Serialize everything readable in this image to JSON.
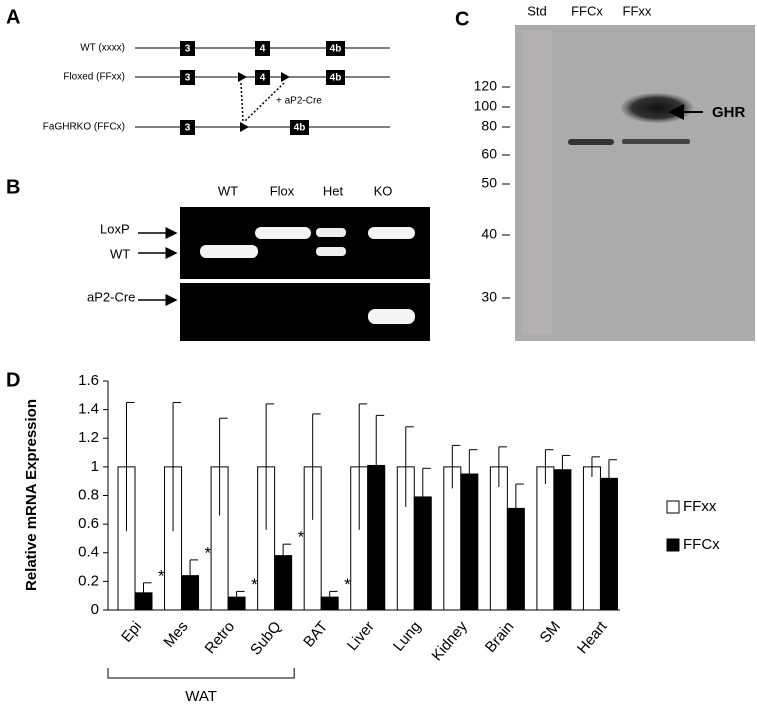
{
  "panel_a": {
    "label": "A",
    "rows": [
      {
        "label": "WT (xxxx)",
        "exons": [
          "3",
          "4",
          "4b"
        ]
      },
      {
        "label": "Floxed (FFxx)",
        "exons": [
          "3",
          "4",
          "4b"
        ]
      },
      {
        "label": "FaGHRKO (FFCx)",
        "exons": [
          "3",
          "4b"
        ]
      }
    ],
    "cre": "+ aP2-Cre"
  },
  "panel_b": {
    "label": "B",
    "lanes": [
      "WT",
      "Flox",
      "Het",
      "KO"
    ],
    "bands": [
      "LoxP",
      "WT",
      "aP2-Cre"
    ]
  },
  "panel_c": {
    "label": "C",
    "lanes": [
      "Std",
      "FFCx",
      "FFxx"
    ],
    "markers": [
      "120",
      "100",
      "80",
      "60",
      "50",
      "40",
      "30"
    ],
    "target": "GHR"
  },
  "chart_data": {
    "type": "bar",
    "panel_label": "D",
    "y_label": "Relative mRNA Expression",
    "categories": [
      "Epi",
      "Mes",
      "Retro",
      "SubQ",
      "BAT",
      "Liver",
      "Lung",
      "Kidney",
      "Brain",
      "SM",
      "Heart"
    ],
    "series": [
      {
        "name": "FFxx",
        "color": "#ffffff",
        "values": [
          1,
          1,
          1,
          1,
          1,
          1,
          1,
          1,
          1,
          1,
          1
        ],
        "errors": [
          0.45,
          0.45,
          0.34,
          0.44,
          0.37,
          0.44,
          0.28,
          0.15,
          0.14,
          0.12,
          0.07
        ]
      },
      {
        "name": "FFCx",
        "color": "#000000",
        "values": [
          0.12,
          0.24,
          0.09,
          0.38,
          0.09,
          1.01,
          0.79,
          0.95,
          0.71,
          0.98,
          0.92
        ],
        "errors": [
          0.07,
          0.11,
          0.04,
          0.08,
          0.04,
          0.35,
          0.2,
          0.17,
          0.17,
          0.1,
          0.13
        ]
      }
    ],
    "significance": [
      "*",
      "*",
      "*",
      "*",
      "*",
      null,
      null,
      null,
      null,
      null,
      null
    ],
    "group_label": "WAT",
    "ylim": [
      0,
      1.6
    ],
    "yticks": [
      0,
      0.2,
      0.4,
      0.6,
      0.8,
      1,
      1.2,
      1.4,
      1.6
    ],
    "legend": "right"
  }
}
